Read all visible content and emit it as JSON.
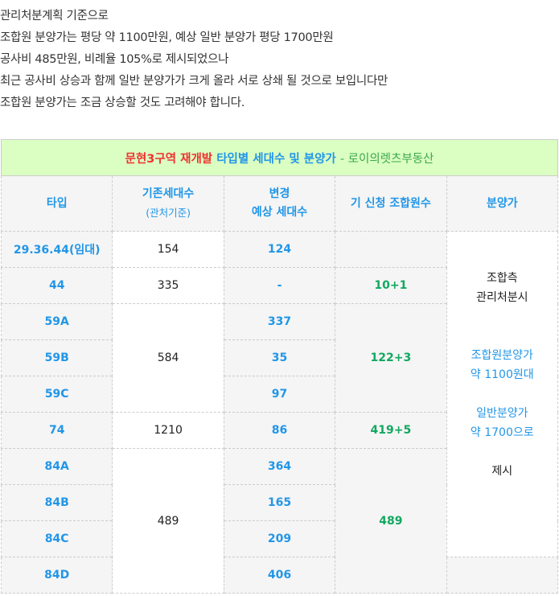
{
  "intro": [
    "관리처분계획 기준으로",
    "조합원 분양가는 평당 약 1100만원, 예상 일반 분양가 평당 1700만원",
    "공사비 485만원, 비례율 105%로 제시되었으나",
    "최근 공사비 상승과 함께 일반 분양가가 크게 올라 서로 상쇄 될 것으로 보입니다만",
    "조합원 분양가는 조금 상승할 것도 고려해야 합니다."
  ],
  "table": {
    "title": {
      "red": "문현3구역 재개발",
      "blue": "타입별 세대수 및 분양가",
      "green": "- 로이의렛츠부동산"
    },
    "headers": {
      "type": "타입",
      "existing": "기존세대수",
      "existing_sub": "(관처기준)",
      "changed1": "변경",
      "changed2": "예상 세대수",
      "applied": "기 신청 조합원수",
      "price": "분양가"
    },
    "types": [
      "29.36.44(임대)",
      "44",
      "59A",
      "59B",
      "59C",
      "74",
      "84A",
      "84B",
      "84C",
      "84D"
    ],
    "existing": [
      "154",
      "335",
      "584",
      "1210",
      "489"
    ],
    "changed": [
      "124",
      "-",
      "337",
      "35",
      "97",
      "86",
      "364",
      "165",
      "209",
      "406"
    ],
    "applied": [
      "",
      "10+1",
      "122+3",
      "419+5",
      "489"
    ],
    "price": {
      "line1": "조합측",
      "line2": "관리처분시",
      "member1": "조합원분양가",
      "member2": "약 1100원대",
      "general1": "일반분양가",
      "general2": "약 1700으로",
      "end": "제시"
    }
  },
  "colors": {
    "blue": "#2196e8",
    "green": "#12a860",
    "red": "#f03030",
    "title_bg": "#dbffc2"
  }
}
